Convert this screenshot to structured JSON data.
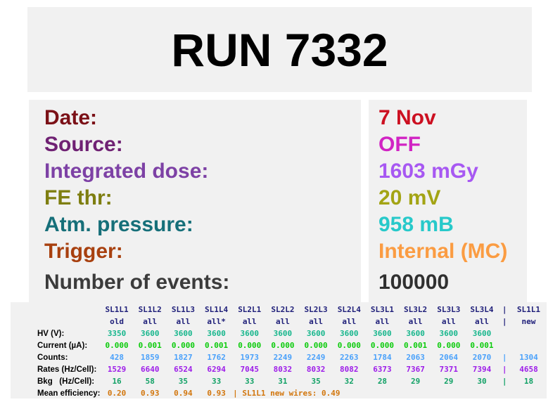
{
  "title": "RUN 7332",
  "info": [
    {
      "label": "Date:",
      "value": "7 Nov",
      "label_color": "#7b1117",
      "value_color": "#cc1021"
    },
    {
      "label": "Source:",
      "value": "OFF",
      "label_color": "#6f2173",
      "value_color": "#d123c3"
    },
    {
      "label": "Integrated dose:",
      "value": "1603 mGy",
      "label_color": "#7d41a5",
      "value_color": "#a758f2"
    },
    {
      "label": "FE thr:",
      "value": "20 mV",
      "label_color": "#7e7e10",
      "value_color": "#a3a414"
    },
    {
      "label": "Atm. pressure:",
      "value": "958 mB",
      "label_color": "#166f79",
      "value_color": "#27c9ca"
    },
    {
      "label": "Trigger:",
      "value": "Internal (MC)",
      "label_color": "#a8400f",
      "value_color": "#fb9c42"
    },
    {
      "label": "Number of events:",
      "value": "100000",
      "label_color": "#3b3b3b",
      "value_color": "#303030"
    }
  ],
  "table": {
    "header_color": "#20207a",
    "columns": [
      "SL1L1",
      "SL1L2",
      "SL1L3",
      "SL1L4",
      "SL2L1",
      "SL2L2",
      "SL2L3",
      "SL2L4",
      "SL3L1",
      "SL3L2",
      "SL3L3",
      "SL3L4"
    ],
    "header_sep": "|",
    "header_extra": "SL1L1",
    "status": {
      "values": [
        "old",
        "all",
        "all",
        "all*",
        "all",
        "all",
        "all",
        "all",
        "all",
        "all",
        "all",
        "all"
      ],
      "sep": "|",
      "extra": "new"
    },
    "rows": [
      {
        "label": "HV (V):",
        "color": "#16b68c",
        "values": [
          "3350",
          "3600",
          "3600",
          "3600",
          "3600",
          "3600",
          "3600",
          "3600",
          "3600",
          "3600",
          "3600",
          "3600"
        ],
        "sep": "",
        "extra": ""
      },
      {
        "label": "Current (µA):",
        "color": "#0bcb0b",
        "values": [
          "0.000",
          "0.001",
          "0.000",
          "0.001",
          "0.000",
          "0.000",
          "0.000",
          "0.000",
          "0.000",
          "0.001",
          "0.000",
          "0.001"
        ],
        "sep": "",
        "extra": ""
      },
      {
        "label": "Counts:",
        "color": "#4aa1fb",
        "values": [
          "428",
          "1859",
          "1827",
          "1762",
          "1973",
          "2249",
          "2249",
          "2263",
          "1784",
          "2063",
          "2064",
          "2070"
        ],
        "sep": "|",
        "extra": "1304"
      },
      {
        "label": "Rates (Hz/Cell):",
        "color": "#9d1ce9",
        "values": [
          "1529",
          "6640",
          "6524",
          "6294",
          "7045",
          "8032",
          "8032",
          "8082",
          "6373",
          "7367",
          "7371",
          "7394"
        ],
        "sep": "|",
        "extra": "4658"
      },
      {
        "label": "Bkg   (Hz/Cell):",
        "color": "#12a166",
        "values": [
          "16",
          "58",
          "35",
          "33",
          "33",
          "31",
          "35",
          "32",
          "28",
          "29",
          "29",
          "30"
        ],
        "sep": "|",
        "extra": "18"
      }
    ],
    "efficiency": {
      "label": "Mean efficiency:",
      "color": "#d2760d",
      "values": [
        "0.20",
        "0.93",
        "0.94",
        "0.93"
      ],
      "note": "| SL1L1 new wires: 0.49"
    }
  }
}
